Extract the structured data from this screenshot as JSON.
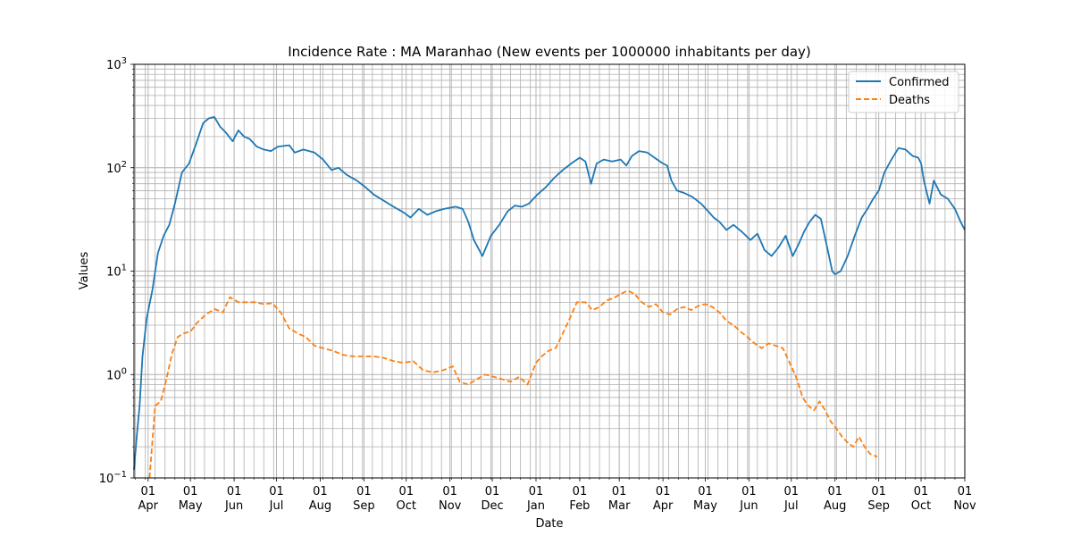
{
  "chart_data": {
    "type": "line",
    "title": "Incidence Rate : MA Maranhao (New events per 1000000 inhabitants per day)",
    "xlabel": "Date",
    "ylabel": "Values",
    "yscale": "log",
    "ylim": [
      0.1,
      1000
    ],
    "yticks": [
      {
        "value": 0.1,
        "base": "10",
        "exp": "−1"
      },
      {
        "value": 1,
        "base": "10",
        "exp": "0"
      },
      {
        "value": 10,
        "base": "10",
        "exp": "1"
      },
      {
        "value": 100,
        "base": "10",
        "exp": "2"
      },
      {
        "value": 1000,
        "base": "10",
        "exp": "3"
      }
    ],
    "xlim": [
      "2020-03-22",
      "2021-11-01"
    ],
    "xticks": [
      {
        "date": "2020-04-01",
        "day": "01",
        "month": "Apr"
      },
      {
        "date": "2020-05-01",
        "day": "01",
        "month": "May"
      },
      {
        "date": "2020-06-01",
        "day": "01",
        "month": "Jun"
      },
      {
        "date": "2020-07-01",
        "day": "01",
        "month": "Jul"
      },
      {
        "date": "2020-08-01",
        "day": "01",
        "month": "Aug"
      },
      {
        "date": "2020-09-01",
        "day": "01",
        "month": "Sep"
      },
      {
        "date": "2020-10-01",
        "day": "01",
        "month": "Oct"
      },
      {
        "date": "2020-11-01",
        "day": "01",
        "month": "Nov"
      },
      {
        "date": "2020-12-01",
        "day": "01",
        "month": "Dec"
      },
      {
        "date": "2021-01-01",
        "day": "01",
        "month": "Jan"
      },
      {
        "date": "2021-02-01",
        "day": "01",
        "month": "Feb"
      },
      {
        "date": "2021-03-01",
        "day": "01",
        "month": "Mar"
      },
      {
        "date": "2021-04-01",
        "day": "01",
        "month": "Apr"
      },
      {
        "date": "2021-05-01",
        "day": "01",
        "month": "May"
      },
      {
        "date": "2021-06-01",
        "day": "01",
        "month": "Jun"
      },
      {
        "date": "2021-07-01",
        "day": "01",
        "month": "Jul"
      },
      {
        "date": "2021-08-01",
        "day": "01",
        "month": "Aug"
      },
      {
        "date": "2021-09-01",
        "day": "01",
        "month": "Sep"
      },
      {
        "date": "2021-10-01",
        "day": "01",
        "month": "Oct"
      },
      {
        "date": "2021-11-01",
        "day": "01",
        "month": "Nov"
      }
    ],
    "grid": true,
    "legend_position": "top-right",
    "series": [
      {
        "name": "Confirmed",
        "color": "#1f77b4",
        "style": "solid",
        "points": [
          [
            "2020-03-22",
            0.12
          ],
          [
            "2020-03-24",
            0.26
          ],
          [
            "2020-03-26",
            0.5
          ],
          [
            "2020-03-28",
            1.5
          ],
          [
            "2020-03-31",
            3.5
          ],
          [
            "2020-04-04",
            6.5
          ],
          [
            "2020-04-08",
            15
          ],
          [
            "2020-04-12",
            22
          ],
          [
            "2020-04-16",
            28
          ],
          [
            "2020-04-20",
            45
          ],
          [
            "2020-04-25",
            90
          ],
          [
            "2020-04-30",
            110
          ],
          [
            "2020-05-05",
            170
          ],
          [
            "2020-05-10",
            270
          ],
          [
            "2020-05-14",
            300
          ],
          [
            "2020-05-18",
            310
          ],
          [
            "2020-05-22",
            250
          ],
          [
            "2020-05-26",
            220
          ],
          [
            "2020-05-31",
            180
          ],
          [
            "2020-06-04",
            230
          ],
          [
            "2020-06-08",
            200
          ],
          [
            "2020-06-12",
            190
          ],
          [
            "2020-06-17",
            160
          ],
          [
            "2020-06-22",
            150
          ],
          [
            "2020-06-27",
            145
          ],
          [
            "2020-07-02",
            160
          ],
          [
            "2020-07-10",
            165
          ],
          [
            "2020-07-14",
            140
          ],
          [
            "2020-07-20",
            150
          ],
          [
            "2020-07-28",
            140
          ],
          [
            "2020-08-03",
            120
          ],
          [
            "2020-08-09",
            95
          ],
          [
            "2020-08-14",
            100
          ],
          [
            "2020-08-20",
            85
          ],
          [
            "2020-08-27",
            75
          ],
          [
            "2020-09-02",
            65
          ],
          [
            "2020-09-08",
            55
          ],
          [
            "2020-09-15",
            48
          ],
          [
            "2020-09-22",
            42
          ],
          [
            "2020-09-29",
            37
          ],
          [
            "2020-10-04",
            33
          ],
          [
            "2020-10-10",
            40
          ],
          [
            "2020-10-16",
            35
          ],
          [
            "2020-10-22",
            38
          ],
          [
            "2020-10-28",
            40
          ],
          [
            "2020-11-05",
            42
          ],
          [
            "2020-11-10",
            40
          ],
          [
            "2020-11-14",
            30
          ],
          [
            "2020-11-18",
            20
          ],
          [
            "2020-11-24",
            14
          ],
          [
            "2020-11-30",
            22
          ],
          [
            "2020-12-06",
            28
          ],
          [
            "2020-12-12",
            38
          ],
          [
            "2020-12-17",
            43
          ],
          [
            "2020-12-22",
            42
          ],
          [
            "2020-12-27",
            45
          ],
          [
            "2021-01-02",
            55
          ],
          [
            "2021-01-08",
            65
          ],
          [
            "2021-01-14",
            80
          ],
          [
            "2021-01-20",
            95
          ],
          [
            "2021-01-26",
            110
          ],
          [
            "2021-02-01",
            125
          ],
          [
            "2021-02-05",
            115
          ],
          [
            "2021-02-09",
            70
          ],
          [
            "2021-02-13",
            110
          ],
          [
            "2021-02-18",
            120
          ],
          [
            "2021-02-24",
            115
          ],
          [
            "2021-03-02",
            120
          ],
          [
            "2021-03-06",
            105
          ],
          [
            "2021-03-10",
            130
          ],
          [
            "2021-03-15",
            145
          ],
          [
            "2021-03-21",
            140
          ],
          [
            "2021-03-26",
            125
          ],
          [
            "2021-04-01",
            110
          ],
          [
            "2021-04-04",
            105
          ],
          [
            "2021-04-07",
            75
          ],
          [
            "2021-04-11",
            60
          ],
          [
            "2021-04-16",
            57
          ],
          [
            "2021-04-22",
            52
          ],
          [
            "2021-04-28",
            45
          ],
          [
            "2021-05-03",
            38
          ],
          [
            "2021-05-07",
            33
          ],
          [
            "2021-05-11",
            30
          ],
          [
            "2021-05-16",
            25
          ],
          [
            "2021-05-21",
            28
          ],
          [
            "2021-05-27",
            24
          ],
          [
            "2021-06-02",
            20
          ],
          [
            "2021-06-07",
            23
          ],
          [
            "2021-06-12",
            16
          ],
          [
            "2021-06-17",
            14
          ],
          [
            "2021-06-22",
            17
          ],
          [
            "2021-06-27",
            22
          ],
          [
            "2021-07-02",
            14
          ],
          [
            "2021-07-06",
            18
          ],
          [
            "2021-07-10",
            24
          ],
          [
            "2021-07-14",
            30
          ],
          [
            "2021-07-18",
            35
          ],
          [
            "2021-07-22",
            32
          ],
          [
            "2021-07-26",
            18
          ],
          [
            "2021-07-30",
            10
          ],
          [
            "2021-08-01",
            9.3
          ],
          [
            "2021-08-05",
            10
          ],
          [
            "2021-08-10",
            14
          ],
          [
            "2021-08-15",
            22
          ],
          [
            "2021-08-20",
            33
          ],
          [
            "2021-08-24",
            40
          ],
          [
            "2021-08-28",
            50
          ],
          [
            "2021-09-01",
            60
          ],
          [
            "2021-09-05",
            90
          ],
          [
            "2021-09-10",
            120
          ],
          [
            "2021-09-15",
            155
          ],
          [
            "2021-09-20",
            150
          ],
          [
            "2021-09-25",
            130
          ],
          [
            "2021-09-29",
            125
          ],
          [
            "2021-10-01",
            110
          ],
          [
            "2021-10-03",
            75
          ],
          [
            "2021-10-07",
            45
          ],
          [
            "2021-10-10",
            75
          ],
          [
            "2021-10-15",
            55
          ],
          [
            "2021-10-20",
            50
          ],
          [
            "2021-10-25",
            40
          ],
          [
            "2021-10-29",
            30
          ],
          [
            "2021-11-01",
            25
          ]
        ]
      },
      {
        "name": "Deaths",
        "color": "#ff7f0e",
        "style": "dashed",
        "points": [
          [
            "2020-04-02",
            0.1
          ],
          [
            "2020-04-06",
            0.5
          ],
          [
            "2020-04-10",
            0.55
          ],
          [
            "2020-04-14",
            0.9
          ],
          [
            "2020-04-18",
            1.6
          ],
          [
            "2020-04-22",
            2.3
          ],
          [
            "2020-04-26",
            2.5
          ],
          [
            "2020-05-01",
            2.6
          ],
          [
            "2020-05-06",
            3.2
          ],
          [
            "2020-05-12",
            3.8
          ],
          [
            "2020-05-18",
            4.3
          ],
          [
            "2020-05-24",
            4.0
          ],
          [
            "2020-05-29",
            5.6
          ],
          [
            "2020-06-04",
            5.0
          ],
          [
            "2020-06-10",
            5.0
          ],
          [
            "2020-06-16",
            5.0
          ],
          [
            "2020-06-22",
            4.8
          ],
          [
            "2020-06-28",
            4.9
          ],
          [
            "2020-07-04",
            4.0
          ],
          [
            "2020-07-10",
            2.8
          ],
          [
            "2020-07-16",
            2.5
          ],
          [
            "2020-07-22",
            2.3
          ],
          [
            "2020-07-28",
            1.9
          ],
          [
            "2020-08-03",
            1.8
          ],
          [
            "2020-08-10",
            1.7
          ],
          [
            "2020-08-17",
            1.55
          ],
          [
            "2020-08-24",
            1.5
          ],
          [
            "2020-09-01",
            1.5
          ],
          [
            "2020-09-08",
            1.5
          ],
          [
            "2020-09-15",
            1.45
          ],
          [
            "2020-09-22",
            1.35
          ],
          [
            "2020-09-29",
            1.3
          ],
          [
            "2020-10-06",
            1.35
          ],
          [
            "2020-10-13",
            1.1
          ],
          [
            "2020-10-20",
            1.05
          ],
          [
            "2020-10-27",
            1.1
          ],
          [
            "2020-11-03",
            1.2
          ],
          [
            "2020-11-08",
            0.85
          ],
          [
            "2020-11-14",
            0.8
          ],
          [
            "2020-11-20",
            0.9
          ],
          [
            "2020-11-26",
            1.0
          ],
          [
            "2020-12-02",
            0.95
          ],
          [
            "2020-12-08",
            0.9
          ],
          [
            "2020-12-14",
            0.85
          ],
          [
            "2020-12-20",
            0.95
          ],
          [
            "2020-12-26",
            0.8
          ],
          [
            "2021-01-01",
            1.3
          ],
          [
            "2021-01-05",
            1.5
          ],
          [
            "2021-01-10",
            1.7
          ],
          [
            "2021-01-15",
            1.8
          ],
          [
            "2021-01-20",
            2.5
          ],
          [
            "2021-01-25",
            3.5
          ],
          [
            "2021-01-30",
            5.0
          ],
          [
            "2021-02-05",
            5.0
          ],
          [
            "2021-02-10",
            4.2
          ],
          [
            "2021-02-15",
            4.5
          ],
          [
            "2021-02-20",
            5.2
          ],
          [
            "2021-02-25",
            5.5
          ],
          [
            "2021-03-02",
            6.0
          ],
          [
            "2021-03-07",
            6.5
          ],
          [
            "2021-03-12",
            6.0
          ],
          [
            "2021-03-17",
            5.0
          ],
          [
            "2021-03-22",
            4.5
          ],
          [
            "2021-03-27",
            4.8
          ],
          [
            "2021-04-01",
            4.0
          ],
          [
            "2021-04-06",
            3.8
          ],
          [
            "2021-04-11",
            4.3
          ],
          [
            "2021-04-16",
            4.5
          ],
          [
            "2021-04-21",
            4.2
          ],
          [
            "2021-04-26",
            4.6
          ],
          [
            "2021-05-01",
            4.8
          ],
          [
            "2021-05-06",
            4.5
          ],
          [
            "2021-05-11",
            4.0
          ],
          [
            "2021-05-16",
            3.3
          ],
          [
            "2021-05-21",
            3.0
          ],
          [
            "2021-05-26",
            2.6
          ],
          [
            "2021-05-31",
            2.3
          ],
          [
            "2021-06-05",
            2.0
          ],
          [
            "2021-06-10",
            1.8
          ],
          [
            "2021-06-15",
            2.0
          ],
          [
            "2021-06-20",
            1.9
          ],
          [
            "2021-06-25",
            1.8
          ],
          [
            "2021-07-01",
            1.2
          ],
          [
            "2021-07-05",
            0.9
          ],
          [
            "2021-07-09",
            0.6
          ],
          [
            "2021-07-13",
            0.5
          ],
          [
            "2021-07-17",
            0.45
          ],
          [
            "2021-07-21",
            0.55
          ],
          [
            "2021-07-25",
            0.45
          ],
          [
            "2021-07-29",
            0.35
          ],
          [
            "2021-08-02",
            0.3
          ],
          [
            "2021-08-06",
            0.25
          ],
          [
            "2021-08-10",
            0.22
          ],
          [
            "2021-08-14",
            0.2
          ],
          [
            "2021-08-18",
            0.25
          ],
          [
            "2021-08-22",
            0.2
          ],
          [
            "2021-08-26",
            0.17
          ],
          [
            "2021-08-31",
            0.16
          ]
        ]
      }
    ]
  }
}
